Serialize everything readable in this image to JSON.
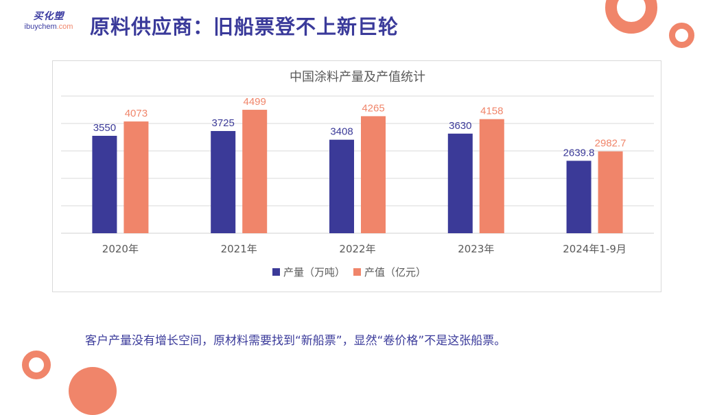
{
  "logo": {
    "cn": "买化塑",
    "en_main": "ibuychem",
    "en_dot": ".com"
  },
  "page": {
    "title": "原料供应商：旧船票登不上新巨轮"
  },
  "caption": "客户产量没有增长空间，原材料需要找到“新船票”，显然“卷价格”不是这张船票。",
  "colors": {
    "series1": "#3b3a98",
    "series2": "#f0856a",
    "title": "#3a3a9a",
    "grid": "#d9d9d9"
  },
  "chart_data": {
    "type": "bar",
    "title": "中国涂料产量及产值统计",
    "categories": [
      "2020年",
      "2021年",
      "2022年",
      "2023年",
      "2024年1-9月"
    ],
    "series": [
      {
        "name": "产量（万吨）",
        "values": [
          3550,
          3725,
          3408,
          3630,
          2639.8
        ],
        "labels": [
          "3550",
          "3725",
          "3408",
          "3630",
          "2639.8"
        ]
      },
      {
        "name": "产值（亿元）",
        "values": [
          4073,
          4499,
          4265,
          4158,
          2982.7
        ],
        "labels": [
          "4073",
          "4499",
          "4265",
          "4158",
          "2982.7"
        ]
      }
    ],
    "ylim": [
      0,
      5000
    ],
    "grid": true,
    "legend": "bottom",
    "xlabel": "",
    "ylabel": ""
  }
}
